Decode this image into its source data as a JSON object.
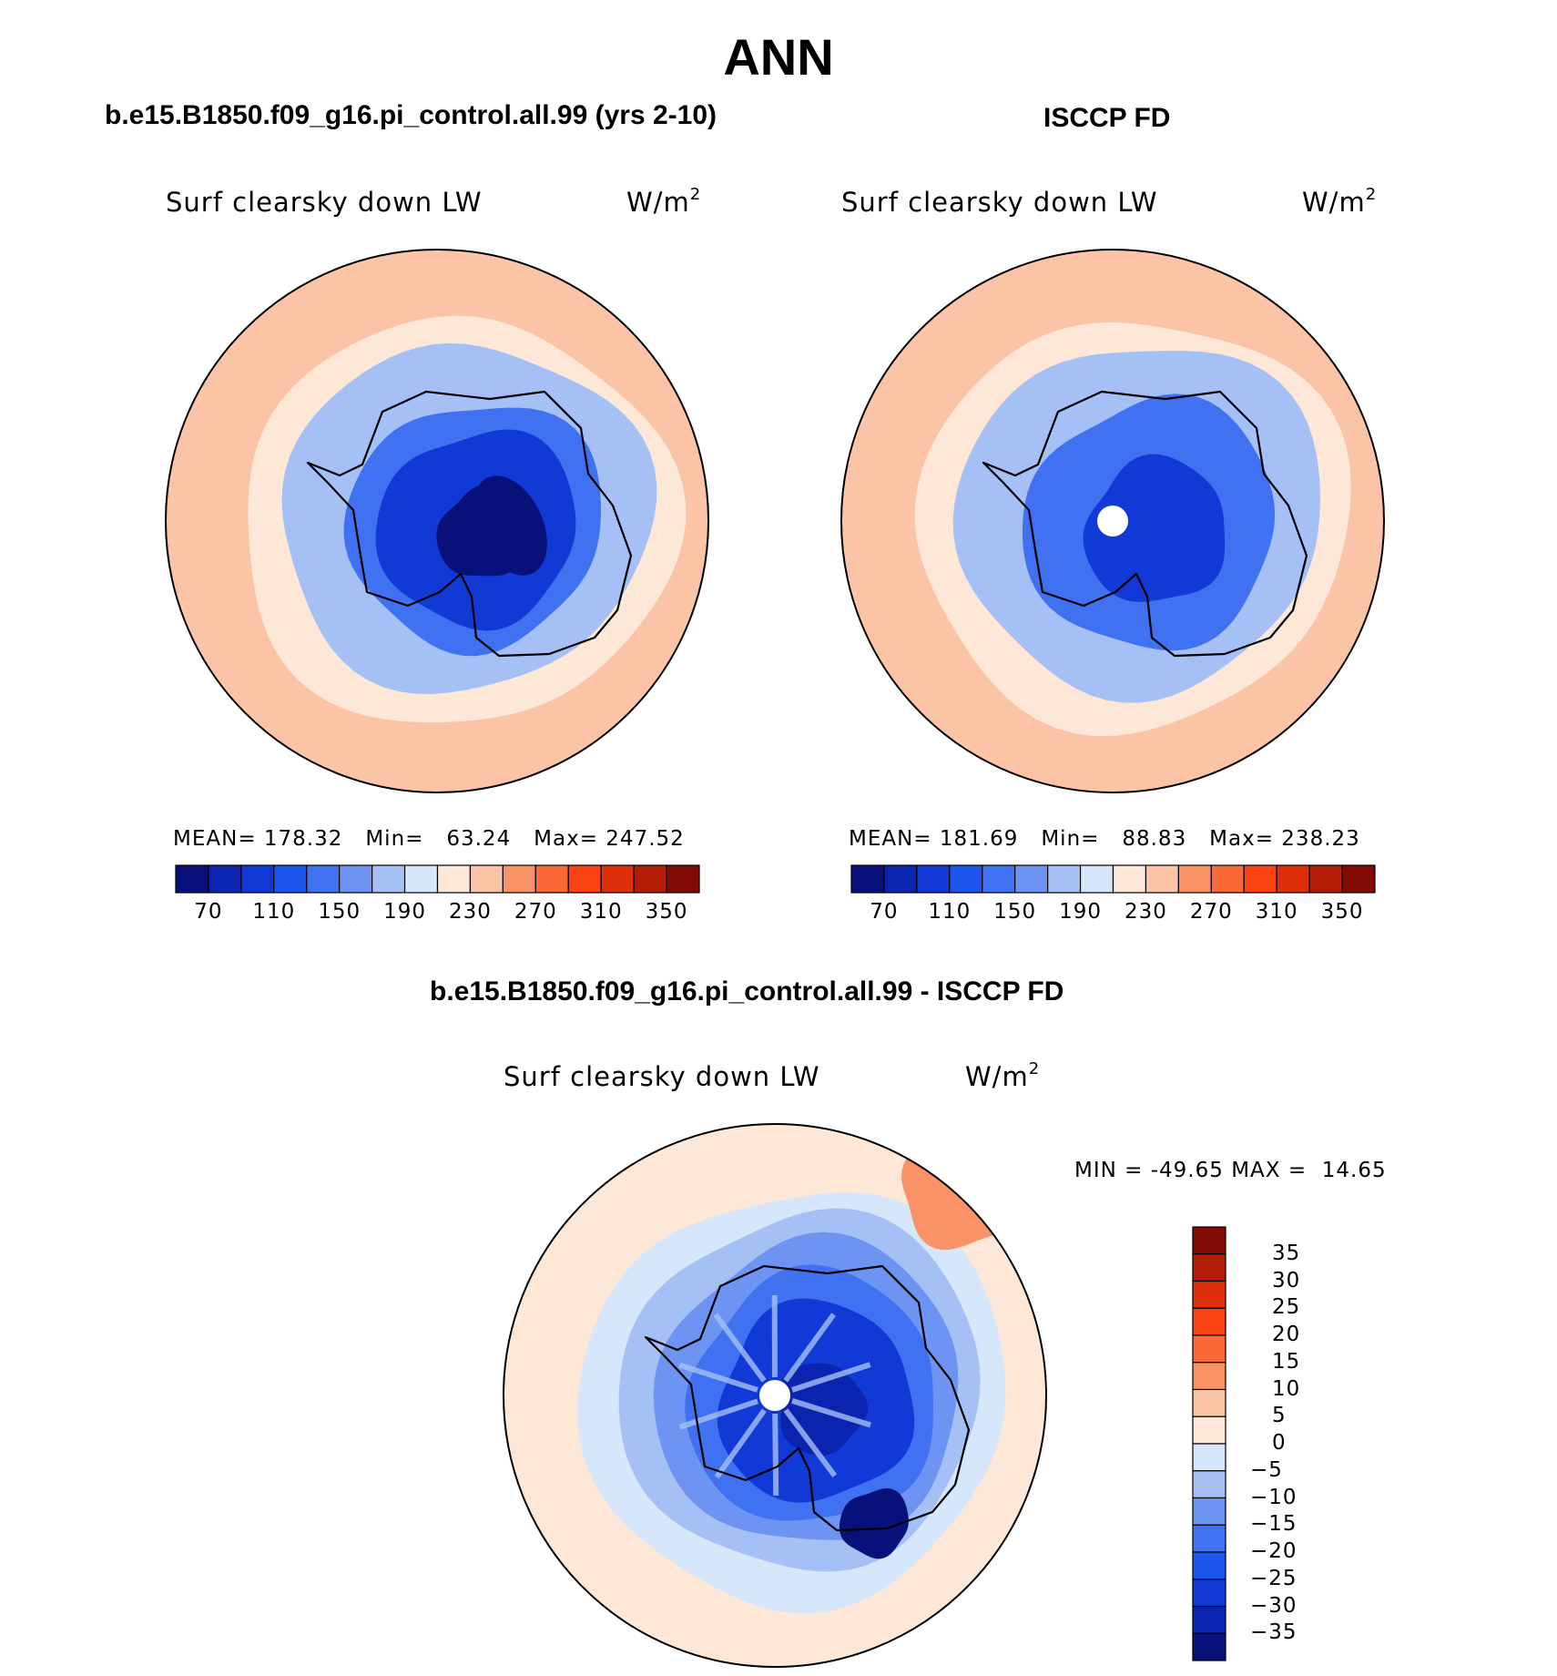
{
  "page_title": "ANN",
  "colors": {
    "model_scale": [
      "#08107a",
      "#0b24b0",
      "#1139d6",
      "#1f55ef",
      "#3f71f0",
      "#6d94f2",
      "#a5c0f5",
      "#d7e7fb",
      "#fde7d6",
      "#fbc4a6",
      "#f99266",
      "#fb6a36",
      "#fa4312",
      "#dd2f09",
      "#b31d05",
      "#820a04"
    ],
    "diff_scale": [
      "#08107a",
      "#0b24b0",
      "#1139d6",
      "#1f55ef",
      "#3f71f0",
      "#6d94f2",
      "#a5c0f5",
      "#d7e7fb",
      "#fde7d6",
      "#fbc4a6",
      "#f99266",
      "#fb6a36",
      "#fa4312",
      "#dd2f09",
      "#b31d05",
      "#820a04"
    ]
  },
  "chart_data": [
    {
      "type": "heatmap",
      "projection": "south-polar-stereographic",
      "title": "b.e15.B1850.f09_g16.pi_control.all.99 (yrs 2-10)",
      "subtitle": "Surf clearsky down LW",
      "units_base": "W/m",
      "units_exp": "2",
      "stats": {
        "mean_label": "MEAN=",
        "mean": "178.32",
        "min_label": "Min=",
        "min": "63.24",
        "max_label": "Max=",
        "max": "247.52"
      },
      "contour_levels": [
        70,
        110,
        150,
        190,
        230,
        270,
        310,
        350
      ],
      "colorbar_tick_labels": [
        "70",
        "110",
        "150",
        "190",
        "230",
        "270",
        "310",
        "350"
      ],
      "colorbar_orientation": "horizontal",
      "field": {
        "ring_values": [
          250,
          235,
          200,
          170,
          150,
          120,
          100,
          80,
          65
        ],
        "pole_value": 60,
        "missing_pole": false
      }
    },
    {
      "type": "heatmap",
      "projection": "south-polar-stereographic",
      "title": "ISCCP FD",
      "subtitle": "Surf clearsky down LW",
      "units_base": "W/m",
      "units_exp": "2",
      "stats": {
        "mean_label": "MEAN=",
        "mean": "181.69",
        "min_label": "Min=",
        "min": "88.83",
        "max_label": "Max=",
        "max": "238.23"
      },
      "contour_levels": [
        70,
        110,
        150,
        190,
        230,
        270,
        310,
        350
      ],
      "colorbar_tick_labels": [
        "70",
        "110",
        "150",
        "190",
        "230",
        "270",
        "310",
        "350"
      ],
      "colorbar_orientation": "horizontal",
      "field": {
        "ring_values": [
          240,
          230,
          210,
          180,
          160,
          130,
          115,
          100,
          90
        ],
        "pole_value": 95,
        "missing_pole": true
      }
    },
    {
      "type": "heatmap",
      "projection": "south-polar-stereographic",
      "title": "b.e15.B1850.f09_g16.pi_control.all.99 - ISCCP FD",
      "subtitle": "Surf clearsky down LW",
      "units_base": "W/m",
      "units_exp": "2",
      "stats": {
        "min_label": "MIN =",
        "min": "-49.65",
        "max_label": "MAX =",
        "max": "14.65"
      },
      "contour_levels": [
        -35,
        -30,
        -25,
        -20,
        -15,
        -10,
        -5,
        0,
        5,
        10,
        15,
        20,
        25,
        30,
        35
      ],
      "colorbar_tick_labels": [
        "35",
        "30",
        "25",
        "20",
        "15",
        "10",
        "5",
        "0",
        "−5",
        "−10",
        "−15",
        "−20",
        "−25",
        "−30",
        "−35"
      ],
      "colorbar_orientation": "vertical",
      "field": {
        "ring_values": [
          3,
          1,
          -3,
          -8,
          -14,
          -20,
          -26,
          -30,
          -33
        ],
        "pole_value": -30,
        "missing_pole": true
      }
    }
  ]
}
